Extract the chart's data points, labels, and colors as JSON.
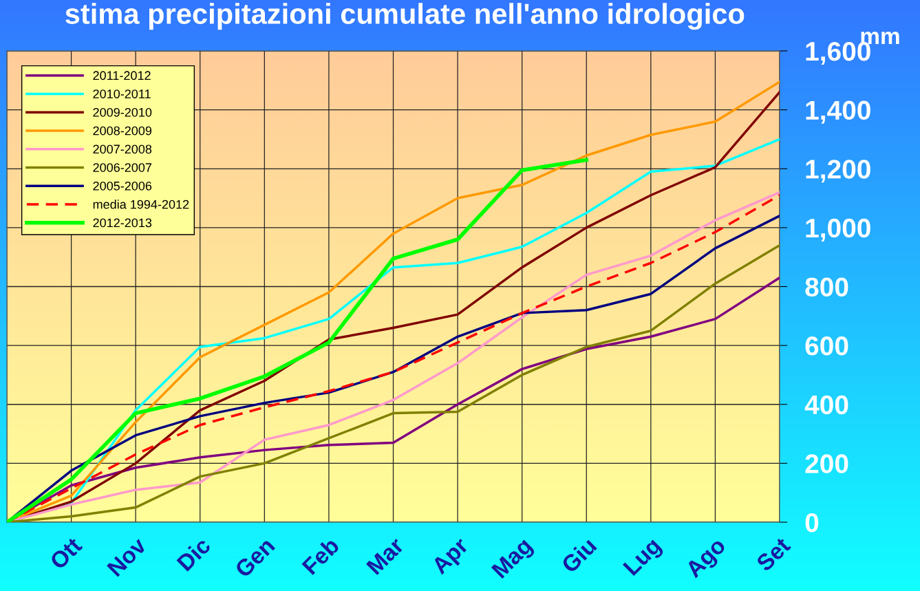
{
  "chart_data": {
    "type": "line",
    "title": "stima precipitazioni cumulate nell'anno idrologico",
    "ylabel": "mm",
    "categories": [
      null,
      "Ott",
      "Nov",
      "Dic",
      "Gen",
      "Feb",
      "Mar",
      "Apr",
      "Mag",
      "Giu",
      "Lug",
      "Ago",
      "Set"
    ],
    "series": [
      {
        "name": "2011-2012",
        "color": "#800080",
        "values": [
          0,
          125,
          185,
          220,
          245,
          262,
          270,
          400,
          520,
          588,
          630,
          690,
          830
        ]
      },
      {
        "name": "2010-2011",
        "color": "#00ffff",
        "values": [
          0,
          65,
          380,
          595,
          625,
          690,
          865,
          880,
          935,
          1050,
          1190,
          1210,
          1300
        ]
      },
      {
        "name": "2009-2010",
        "color": "#800000",
        "values": [
          0,
          70,
          200,
          380,
          480,
          620,
          660,
          705,
          865,
          1000,
          1110,
          1205,
          1460
        ]
      },
      {
        "name": "2008-2009",
        "color": "#ff9900",
        "values": [
          0,
          90,
          340,
          560,
          670,
          780,
          980,
          1100,
          1145,
          1245,
          1315,
          1360,
          1495
        ]
      },
      {
        "name": "2007-2008",
        "color": "#ff99cc",
        "values": [
          0,
          60,
          110,
          135,
          280,
          330,
          415,
          540,
          695,
          840,
          905,
          1025,
          1120
        ]
      },
      {
        "name": "2006-2007",
        "color": "#808000",
        "values": [
          0,
          20,
          50,
          155,
          200,
          285,
          370,
          375,
          500,
          595,
          650,
          810,
          940
        ]
      },
      {
        "name": "2005-2006",
        "color": "#000080",
        "values": [
          0,
          175,
          295,
          360,
          405,
          440,
          510,
          630,
          710,
          720,
          775,
          930,
          1040
        ]
      },
      {
        "name": "media 1994-2012",
        "color": "#ff0000",
        "line_style": "dashed",
        "values": [
          0,
          115,
          230,
          330,
          390,
          445,
          510,
          610,
          710,
          800,
          880,
          985,
          1110
        ]
      },
      {
        "name": "2012-2013",
        "color": "#00ff00",
        "values": [
          0,
          145,
          370,
          420,
          495,
          610,
          895,
          960,
          1195,
          1230,
          null,
          null,
          null
        ]
      }
    ],
    "ylim": [
      0,
      1600
    ],
    "yticks": [
      {
        "value": 0,
        "label": "0"
      },
      {
        "value": 200,
        "label": "200"
      },
      {
        "value": 400,
        "label": "400"
      },
      {
        "value": 600,
        "label": "600"
      },
      {
        "value": 800,
        "label": "800"
      },
      {
        "value": 1000,
        "label": "1,000"
      },
      {
        "value": 1200,
        "label": "1,200"
      },
      {
        "value": 1400,
        "label": "1,400"
      },
      {
        "value": 1600,
        "label": "1,600"
      }
    ],
    "grid": true,
    "legend": "top left",
    "marker": "none"
  }
}
